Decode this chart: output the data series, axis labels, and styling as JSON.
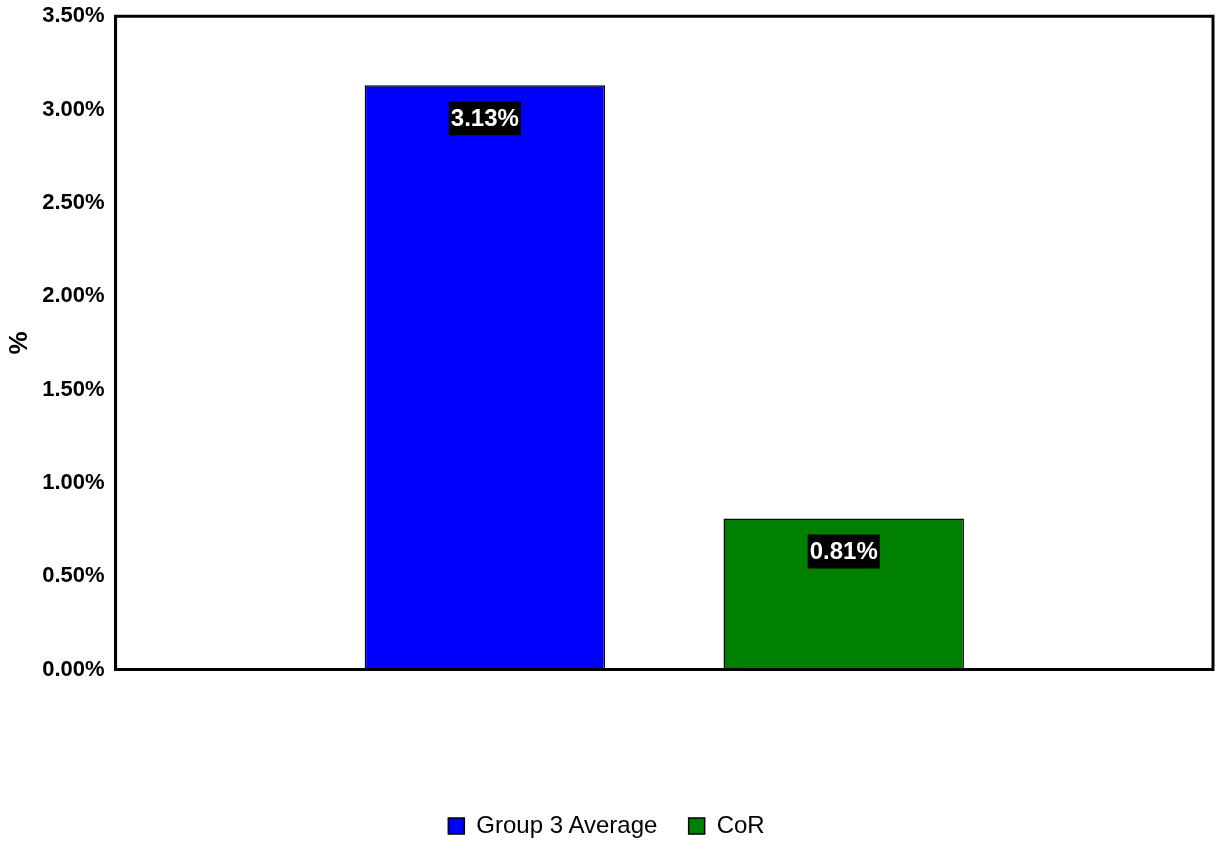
{
  "chart_data": {
    "type": "bar",
    "ylabel": "%",
    "categories": [
      null
    ],
    "series": [
      {
        "name": "Group 3 Average",
        "color": "#0000ff",
        "values": [
          3.13
        ],
        "value_labels": [
          "3.13%"
        ]
      },
      {
        "name": "CoR",
        "color": "#008000",
        "values": [
          0.81
        ],
        "value_labels": [
          "0.81%"
        ]
      }
    ],
    "ylim": [
      0,
      3.5
    ],
    "yticks": [
      {
        "value": 0,
        "label": "0.00%"
      },
      {
        "value": 0.5,
        "label": "0.50%"
      },
      {
        "value": 1,
        "label": "1.00%"
      },
      {
        "value": 1.5,
        "label": "1.50%"
      },
      {
        "value": 2,
        "label": "2.00%"
      },
      {
        "value": 2.5,
        "label": "2.50%"
      },
      {
        "value": 3,
        "label": "3.00%"
      },
      {
        "value": 3.5,
        "label": "3.50%"
      }
    ],
    "grid": false,
    "legend": "bottom"
  }
}
